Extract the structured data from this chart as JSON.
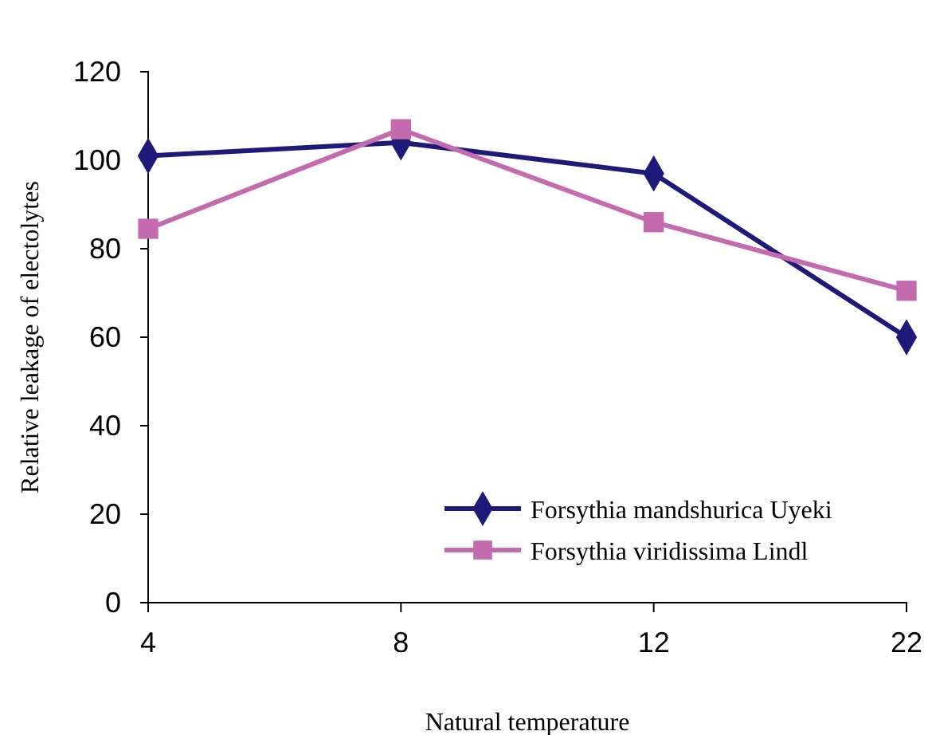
{
  "chart_data": {
    "type": "line",
    "xlabel": "Natural temperature",
    "ylabel": "Relative leakage of electolytes",
    "categories": [
      "4",
      "8",
      "12",
      "22"
    ],
    "series": [
      {
        "name": "Forsythia mandshurica Uyeki",
        "color": "#1f1a7a",
        "marker": "diamond",
        "values": [
          101,
          104,
          97,
          60
        ]
      },
      {
        "name": "Forsythia viridissima Lindl",
        "color": "#c46aaf",
        "marker": "square",
        "values": [
          84.5,
          107,
          86,
          70.5
        ]
      }
    ],
    "ylim": [
      0,
      120
    ],
    "yticks": [
      0,
      20,
      40,
      60,
      80,
      100,
      120
    ],
    "grid": false,
    "legend": "bottom right",
    "line_style": "solid"
  }
}
